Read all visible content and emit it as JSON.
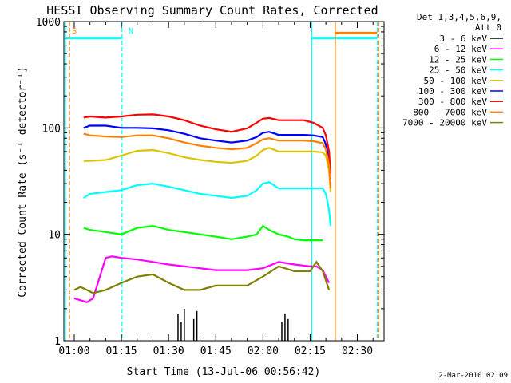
{
  "chart_data": {
    "type": "line",
    "title": "HESSI Observing Summary Count Rates, Corrected",
    "xlabel": "Start Time (13-Jul-06 00:56:42)",
    "ylabel": "Corrected Count Rate (s⁻¹ detector⁻¹)",
    "yscale": "log",
    "ylim": [
      1,
      1000
    ],
    "xlim_minutes": [
      56.7,
      158.5
    ],
    "x_ticks": [
      {
        "minute": 60,
        "label": "01:00"
      },
      {
        "minute": 75,
        "label": "01:15"
      },
      {
        "minute": 90,
        "label": "01:30"
      },
      {
        "minute": 105,
        "label": "01:45"
      },
      {
        "minute": 120,
        "label": "02:00"
      },
      {
        "minute": 135,
        "label": "02:15"
      },
      {
        "minute": 150,
        "label": "02:30"
      }
    ],
    "y_ticks": [
      {
        "value": 1,
        "label": "1"
      },
      {
        "value": 10,
        "label": "10"
      },
      {
        "value": 100,
        "label": "100"
      },
      {
        "value": 1000,
        "label": "1000"
      }
    ],
    "legend_header": [
      "Det 1,3,4,5,6,9,",
      "Att 0"
    ],
    "legend_placement": "right",
    "series": [
      {
        "name": "3 - 6 keV",
        "color": "#000000",
        "x": [
          93.0,
          94.0,
          95.0,
          98.0,
          99.0,
          126.0,
          127.0,
          128.0
        ],
        "y": [
          1.8,
          1.5,
          2.0,
          1.6,
          1.9,
          1.5,
          1.8,
          1.6
        ]
      },
      {
        "name": "6 - 12 keV",
        "color": "#ff00ff",
        "x": [
          60,
          62,
          64,
          66,
          70,
          72,
          75,
          80,
          85,
          90,
          95,
          100,
          105,
          110,
          115,
          120,
          125,
          130,
          135,
          137,
          139,
          141
        ],
        "y": [
          2.5,
          2.4,
          2.3,
          2.5,
          6.0,
          6.2,
          6.0,
          5.8,
          5.5,
          5.2,
          5.0,
          4.8,
          4.6,
          4.6,
          4.6,
          4.8,
          5.5,
          5.2,
          5.0,
          5.0,
          4.6,
          3.5
        ]
      },
      {
        "name": "12 - 25 keV",
        "color": "#00ff00",
        "x": [
          63,
          65,
          70,
          75,
          80,
          85,
          90,
          95,
          100,
          105,
          110,
          115,
          118,
          120,
          122,
          125,
          128,
          130,
          133,
          136,
          139
        ],
        "y": [
          11.5,
          11.0,
          10.5,
          10.0,
          11.5,
          12.0,
          11.0,
          10.5,
          10.0,
          9.5,
          9.0,
          9.5,
          10.0,
          12.0,
          11.0,
          10.0,
          9.5,
          9.0,
          8.8,
          8.8,
          8.8
        ]
      },
      {
        "name": "25 - 50 keV",
        "color": "#00ffff",
        "x": [
          63,
          65,
          70,
          75,
          80,
          85,
          90,
          95,
          100,
          105,
          110,
          115,
          118,
          120,
          122,
          125,
          128,
          130,
          133,
          136,
          139,
          140,
          141,
          141.5
        ],
        "y": [
          22,
          24,
          25,
          26,
          29,
          30,
          28,
          26,
          24,
          23,
          22,
          23,
          26,
          30,
          31,
          27,
          27,
          27,
          27,
          27,
          27,
          24,
          17,
          12
        ]
      },
      {
        "name": "50 - 100 keV",
        "color": "#ddc400",
        "x": [
          63,
          65,
          70,
          75,
          80,
          85,
          90,
          95,
          100,
          105,
          110,
          115,
          118,
          120,
          122,
          125,
          128,
          130,
          133,
          136,
          139,
          140,
          141,
          141.5
        ],
        "y": [
          49,
          49,
          50,
          55,
          61,
          62,
          58,
          53,
          50,
          48,
          47,
          49,
          55,
          62,
          65,
          60,
          60,
          60,
          60,
          60,
          59,
          55,
          40,
          25
        ]
      },
      {
        "name": "100 - 300 keV",
        "color": "#0000ff",
        "x": [
          63,
          65,
          70,
          75,
          80,
          85,
          90,
          95,
          100,
          105,
          110,
          115,
          118,
          120,
          122,
          125,
          128,
          130,
          133,
          136,
          139,
          140,
          141,
          141.5
        ],
        "y": [
          100,
          105,
          105,
          100,
          100,
          99,
          95,
          88,
          80,
          76,
          73,
          76,
          82,
          90,
          92,
          86,
          86,
          86,
          86,
          85,
          82,
          70,
          50,
          30
        ]
      },
      {
        "name": "300 - 800 keV",
        "color": "#ff0000",
        "x": [
          63,
          65,
          70,
          75,
          80,
          85,
          90,
          95,
          100,
          105,
          110,
          115,
          118,
          120,
          122,
          125,
          128,
          130,
          133,
          136,
          139,
          140,
          141,
          141.5
        ],
        "y": [
          125,
          128,
          125,
          128,
          133,
          134,
          128,
          118,
          105,
          97,
          92,
          99,
          112,
          122,
          124,
          118,
          118,
          118,
          118,
          112,
          100,
          85,
          60,
          35
        ]
      },
      {
        "name": "800 - 7000 keV",
        "color": "#ff8000",
        "x": [
          63,
          65,
          70,
          75,
          80,
          85,
          90,
          95,
          100,
          105,
          110,
          115,
          118,
          120,
          122,
          125,
          128,
          130,
          133,
          136,
          139,
          140,
          141,
          141.5
        ],
        "y": [
          88,
          85,
          83,
          82,
          85,
          85,
          80,
          73,
          68,
          65,
          63,
          65,
          72,
          78,
          80,
          76,
          76,
          76,
          76,
          75,
          72,
          63,
          45,
          27
        ]
      },
      {
        "name": "7000 - 20000 keV",
        "color": "#808000",
        "x": [
          60,
          62,
          64,
          66,
          70,
          75,
          80,
          85,
          90,
          95,
          100,
          105,
          110,
          115,
          120,
          125,
          130,
          135,
          137,
          139,
          141
        ],
        "y": [
          3.0,
          3.2,
          3.0,
          2.8,
          3.0,
          3.5,
          4.0,
          4.2,
          3.5,
          3.0,
          3.0,
          3.3,
          3.3,
          3.3,
          4.0,
          5.0,
          4.5,
          4.5,
          5.5,
          4.5,
          3.0
        ]
      }
    ],
    "annotations": [
      {
        "text": "S",
        "minute": 58.5,
        "color": "#ff8000"
      },
      {
        "text": "N",
        "minute": 76.5,
        "color": "#00ffff"
      }
    ],
    "flag_lines": [
      {
        "minute": 57.2,
        "color": "#00ffff",
        "style": "solid"
      },
      {
        "minute": 58.5,
        "color": "#ff8000",
        "style": "dashed"
      },
      {
        "minute": 75.2,
        "color": "#00ffff",
        "style": "dashed"
      },
      {
        "minute": 135.5,
        "color": "#00ffff",
        "style": "solid"
      },
      {
        "minute": 143.0,
        "color": "#ff8000",
        "style": "solid"
      },
      {
        "minute": 156.3,
        "color": "#00ffff",
        "style": "dashed"
      },
      {
        "minute": 156.8,
        "color": "#ff8000",
        "style": "dashed"
      }
    ],
    "flag_bars": [
      {
        "from_minute": 57.2,
        "to_minute": 75.2,
        "value": 700,
        "color": "#00ffff"
      },
      {
        "from_minute": 135.5,
        "to_minute": 156.3,
        "value": 700,
        "color": "#00ffff"
      },
      {
        "from_minute": 143.0,
        "to_minute": 156.3,
        "value": 780,
        "color": "#ff8000"
      }
    ]
  },
  "footer": {
    "date_stamp": "2-Mar-2010 02:09"
  }
}
